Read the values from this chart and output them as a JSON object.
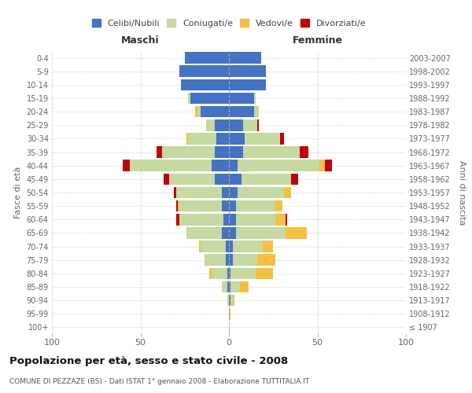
{
  "age_groups": [
    "100+",
    "95-99",
    "90-94",
    "85-89",
    "80-84",
    "75-79",
    "70-74",
    "65-69",
    "60-64",
    "55-59",
    "50-54",
    "45-49",
    "40-44",
    "35-39",
    "30-34",
    "25-29",
    "20-24",
    "15-19",
    "10-14",
    "5-9",
    "0-4"
  ],
  "birth_years": [
    "≤ 1907",
    "1908-1912",
    "1913-1917",
    "1918-1922",
    "1923-1927",
    "1928-1932",
    "1933-1937",
    "1938-1942",
    "1943-1947",
    "1948-1952",
    "1953-1957",
    "1958-1962",
    "1963-1967",
    "1968-1972",
    "1973-1977",
    "1978-1982",
    "1983-1987",
    "1988-1992",
    "1993-1997",
    "1998-2002",
    "2003-2007"
  ],
  "colors": {
    "celibi": "#4472C4",
    "coniugati": "#C5D9A0",
    "vedovi": "#F5C040",
    "divorziati": "#C0000C"
  },
  "maschi": {
    "celibi": [
      0,
      0,
      0,
      1,
      1,
      2,
      2,
      4,
      3,
      4,
      4,
      8,
      10,
      8,
      7,
      8,
      16,
      22,
      27,
      28,
      25
    ],
    "coniugati": [
      0,
      0,
      1,
      3,
      9,
      12,
      14,
      20,
      25,
      24,
      26,
      26,
      46,
      30,
      16,
      5,
      2,
      1,
      0,
      0,
      0
    ],
    "vedovi": [
      0,
      0,
      0,
      0,
      1,
      0,
      1,
      0,
      0,
      1,
      0,
      0,
      0,
      0,
      1,
      0,
      1,
      0,
      0,
      0,
      0
    ],
    "divorziati": [
      0,
      0,
      0,
      0,
      0,
      0,
      0,
      0,
      2,
      1,
      1,
      3,
      4,
      3,
      0,
      0,
      0,
      0,
      0,
      0,
      0
    ]
  },
  "femmine": {
    "celibi": [
      0,
      0,
      1,
      1,
      1,
      2,
      2,
      4,
      4,
      4,
      5,
      7,
      5,
      8,
      9,
      8,
      14,
      14,
      21,
      21,
      18
    ],
    "coniugati": [
      0,
      0,
      1,
      5,
      14,
      14,
      17,
      28,
      22,
      22,
      26,
      28,
      46,
      32,
      20,
      8,
      3,
      1,
      0,
      0,
      0
    ],
    "vedovi": [
      0,
      1,
      1,
      5,
      10,
      10,
      6,
      12,
      6,
      4,
      4,
      0,
      3,
      0,
      0,
      0,
      0,
      0,
      0,
      0,
      0
    ],
    "divorziati": [
      0,
      0,
      0,
      0,
      0,
      0,
      0,
      0,
      1,
      0,
      0,
      4,
      4,
      5,
      2,
      1,
      0,
      0,
      0,
      0,
      0
    ]
  },
  "title": "Popolazione per età, sesso e stato civile - 2008",
  "subtitle": "COMUNE DI PEZZAZE (BS) - Dati ISTAT 1° gennaio 2008 - Elaborazione TUTTITALIA.IT",
  "xlabel_left": "Maschi",
  "xlabel_right": "Femmine",
  "ylabel_left": "Fasce di età",
  "ylabel_right": "Anni di nascita",
  "xlim": 100,
  "legend_labels": [
    "Celibi/Nubili",
    "Coniugati/e",
    "Vedovi/e",
    "Divorziati/e"
  ],
  "background_color": "#ffffff",
  "grid_color": "#cccccc"
}
